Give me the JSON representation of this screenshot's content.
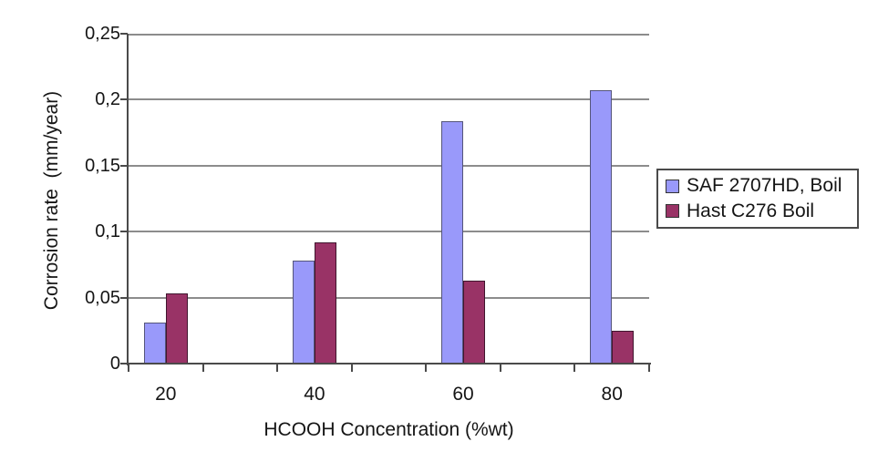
{
  "chart_data": {
    "type": "bar",
    "categories": [
      "20",
      "40",
      "60",
      "80"
    ],
    "series": [
      {
        "name": "SAF 2707HD, Boil",
        "color": "#9999fa",
        "border_color": "#55557a",
        "values": [
          0.031,
          0.078,
          0.184,
          0.207
        ]
      },
      {
        "name": "Hast C276 Boil",
        "color": "#993366",
        "border_color": "#40152e",
        "values": [
          0.053,
          0.092,
          0.063,
          0.025
        ]
      }
    ],
    "xlabel": "HCOOH Concentration (%wt)",
    "ylabel": "Corrosion rate  (mm/year)",
    "ylim": [
      0,
      0.25
    ],
    "y_ticks": [
      0,
      0.05,
      0.1,
      0.15,
      0.2,
      0.25
    ],
    "y_tick_labels": [
      "0",
      "0,05",
      "0,1",
      "0,15",
      "0,2",
      "0,25"
    ],
    "decimal_separator": ",",
    "grid": true,
    "legend_position": "right",
    "colors": {
      "background": "#ffffff",
      "gridline": "#8c8c8c",
      "axis": "#4a4a4a",
      "text": "#151515",
      "legend_border": "#4a4a4a"
    }
  }
}
